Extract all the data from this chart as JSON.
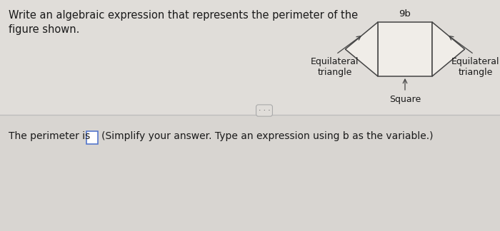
{
  "bg_color": "#e0ddd9",
  "bg_color_bottom": "#dedad6",
  "title_text": "Write an algebraic expression that represents the perimeter of the\nfigure shown.",
  "title_fontsize": 10.5,
  "bottom_text": "The perimeter is",
  "bottom_subtext": "(Simplify your answer. Type an expression using b as the variable.)",
  "label_9b": "9b",
  "label_square": "Square",
  "label_eq_left": "Equilateral\ntriangle",
  "label_eq_right": "Equilateral\ntriangle",
  "shape_color": "#f0ede8",
  "shape_edge_color": "#444444",
  "text_color": "#1a1a1a",
  "divider_color": "#bbbbbb",
  "box_edge_color": "#5577cc",
  "fig_width": 7.0,
  "fig_height": 3.24,
  "dpi": 100
}
